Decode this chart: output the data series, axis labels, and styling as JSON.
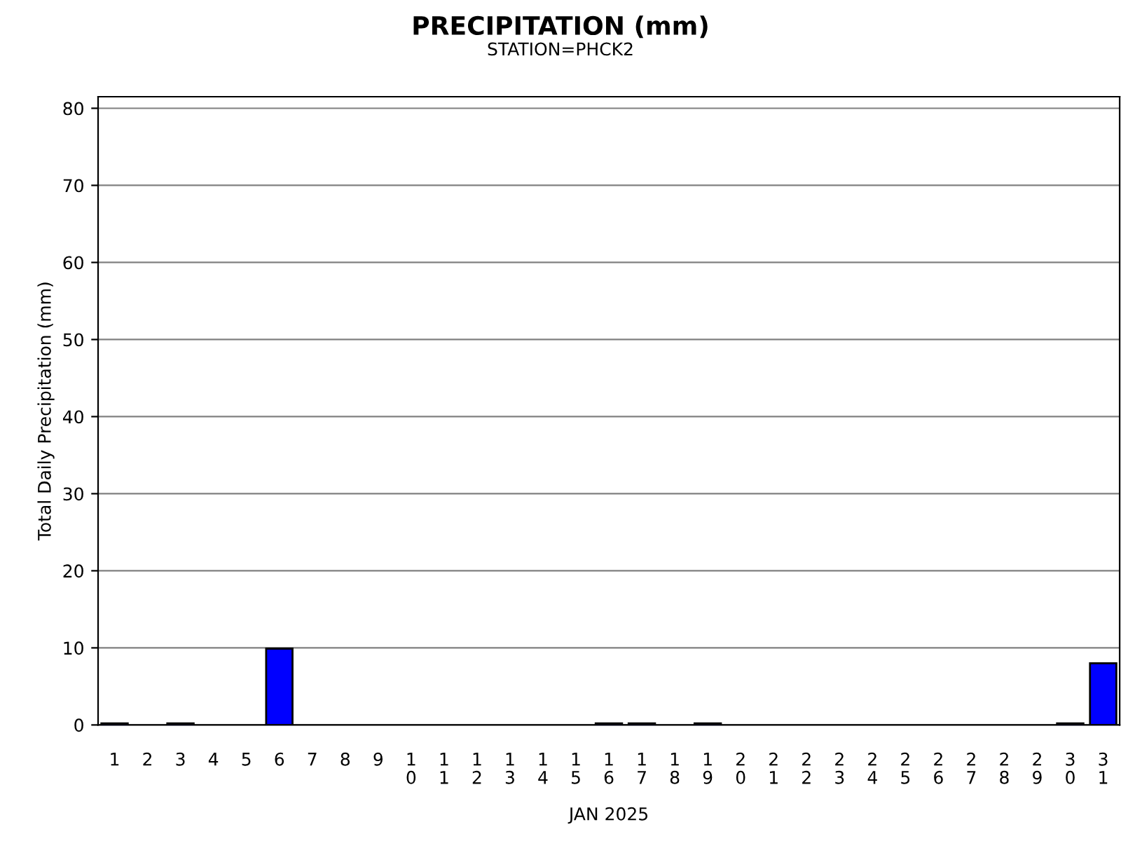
{
  "chart_data": {
    "type": "bar",
    "title": "PRECIPITATION (mm)",
    "subtitle": "STATION=PHCK2",
    "xlabel": "JAN 2025",
    "ylabel": "Total Daily Precipitation (mm)",
    "categories": [
      "1",
      "2",
      "3",
      "4",
      "5",
      "6",
      "7",
      "8",
      "9",
      "10",
      "11",
      "12",
      "13",
      "14",
      "15",
      "16",
      "17",
      "18",
      "19",
      "20",
      "21",
      "22",
      "23",
      "24",
      "25",
      "26",
      "27",
      "28",
      "29",
      "30",
      "31"
    ],
    "values": [
      0.2,
      0,
      0.2,
      0,
      0,
      9.9,
      0,
      0,
      0,
      0,
      0,
      0,
      0,
      0,
      0,
      0.2,
      0.2,
      0,
      0.2,
      0,
      0,
      0,
      0,
      0,
      0,
      0,
      0,
      0,
      0,
      0.2,
      8.0
    ],
    "color": "#0000ff",
    "ylim": [
      0,
      81.5
    ],
    "yticks": [
      0,
      10,
      20,
      30,
      40,
      50,
      60,
      70,
      80
    ],
    "grid": "y"
  }
}
